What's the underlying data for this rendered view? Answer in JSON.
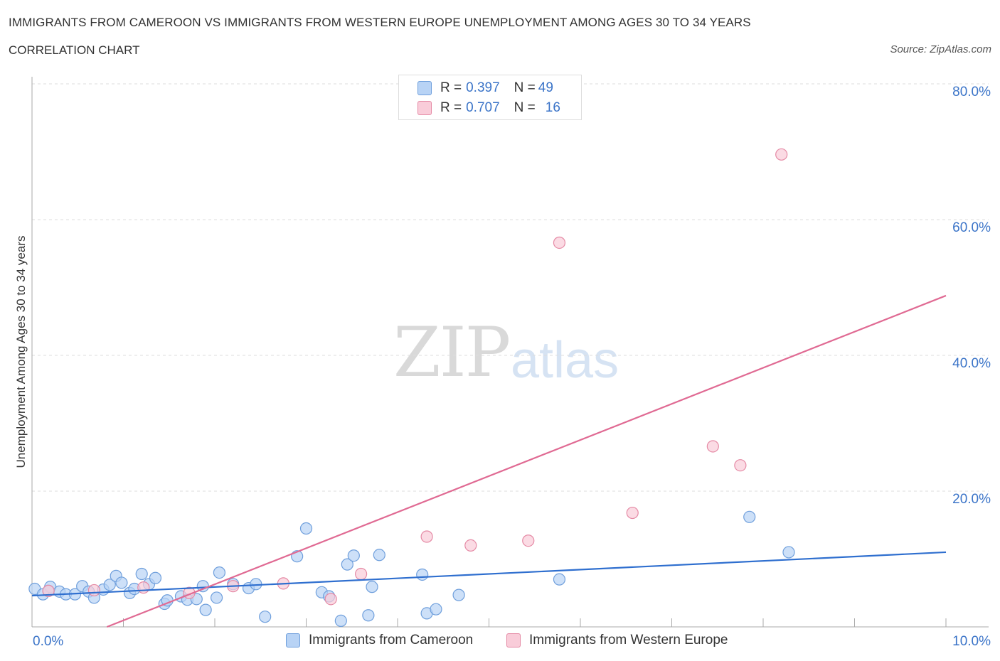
{
  "header": {
    "title": "IMMIGRANTS FROM CAMEROON VS IMMIGRANTS FROM WESTERN EUROPE UNEMPLOYMENT AMONG AGES 30 TO 34 YEARS",
    "subtitle": "CORRELATION CHART",
    "source": "Source: ZipAtlas.com"
  },
  "watermark": {
    "zip": "ZIP",
    "atlas": "atlas"
  },
  "stats_legend": [
    {
      "r_label": "R =",
      "r_value": "0.397",
      "n_label": "N =",
      "n_value": "49",
      "color": "#9dc3f0"
    },
    {
      "r_label": "R =",
      "r_value": "0.707",
      "n_label": "N =",
      "n_value": "16",
      "color": "#f5b3c6"
    }
  ],
  "colors": {
    "blue_fill": "#b8d3f5",
    "blue_stroke": "#6f9fdc",
    "blue_line": "#2f6fcf",
    "pink_fill": "#f9ccd9",
    "pink_stroke": "#e58aa5",
    "pink_line": "#e06a93",
    "axis_text": "#3b74c8",
    "grid": "#dddddd"
  },
  "chart_data": {
    "type": "scatter",
    "title": "IMMIGRANTS FROM CAMEROON VS IMMIGRANTS FROM WESTERN EUROPE UNEMPLOYMENT AMONG AGES 30 TO 34 YEARS",
    "subtitle": "CORRELATION CHART",
    "xlabel": "",
    "ylabel": "Unemployment Among Ages 30 to 34 years",
    "xlim": [
      0,
      10
    ],
    "ylim": [
      0,
      80
    ],
    "x_tick_labels": [
      "0.0%",
      "10.0%"
    ],
    "y_ticks": [
      20,
      40,
      60,
      80
    ],
    "y_tick_labels": [
      "20.0%",
      "40.0%",
      "60.0%",
      "80.0%"
    ],
    "grid": true,
    "legend_position": "bottom",
    "series": [
      {
        "name": "Immigrants from Cameroon",
        "color": "#9dc3f0",
        "points": [
          [
            0.03,
            5.6
          ],
          [
            0.12,
            4.8
          ],
          [
            0.2,
            5.9
          ],
          [
            0.3,
            5.2
          ],
          [
            0.37,
            4.8
          ],
          [
            0.47,
            4.8
          ],
          [
            0.55,
            6.0
          ],
          [
            0.62,
            5.2
          ],
          [
            0.68,
            4.3
          ],
          [
            0.78,
            5.5
          ],
          [
            0.85,
            6.2
          ],
          [
            0.92,
            7.5
          ],
          [
            0.98,
            6.5
          ],
          [
            1.07,
            5.0
          ],
          [
            1.12,
            5.6
          ],
          [
            1.2,
            7.8
          ],
          [
            1.28,
            6.3
          ],
          [
            1.35,
            7.2
          ],
          [
            1.45,
            3.4
          ],
          [
            1.48,
            3.9
          ],
          [
            1.63,
            4.5
          ],
          [
            1.7,
            4.0
          ],
          [
            1.8,
            4.1
          ],
          [
            1.87,
            6.0
          ],
          [
            1.9,
            2.5
          ],
          [
            2.02,
            4.3
          ],
          [
            2.05,
            8.0
          ],
          [
            2.2,
            6.3
          ],
          [
            2.37,
            5.7
          ],
          [
            2.45,
            6.3
          ],
          [
            2.55,
            1.5
          ],
          [
            2.9,
            10.4
          ],
          [
            3.0,
            14.5
          ],
          [
            3.17,
            5.1
          ],
          [
            3.25,
            4.5
          ],
          [
            3.38,
            0.9
          ],
          [
            3.45,
            9.2
          ],
          [
            3.52,
            10.5
          ],
          [
            3.68,
            1.7
          ],
          [
            3.72,
            5.9
          ],
          [
            3.8,
            10.6
          ],
          [
            4.27,
            7.7
          ],
          [
            4.32,
            2.0
          ],
          [
            4.42,
            2.6
          ],
          [
            4.67,
            4.7
          ],
          [
            5.77,
            7.0
          ],
          [
            7.85,
            16.2
          ],
          [
            8.28,
            11.0
          ],
          [
            0.18,
            5.3
          ]
        ]
      },
      {
        "name": "Immigrants from Western Europe",
        "color": "#f5b3c6",
        "points": [
          [
            0.18,
            5.3
          ],
          [
            0.68,
            5.4
          ],
          [
            1.22,
            5.8
          ],
          [
            1.72,
            5.0
          ],
          [
            2.2,
            6.0
          ],
          [
            2.75,
            6.4
          ],
          [
            3.27,
            4.1
          ],
          [
            3.6,
            7.8
          ],
          [
            4.32,
            13.3
          ],
          [
            4.8,
            12.0
          ],
          [
            5.43,
            12.7
          ],
          [
            5.77,
            56.6
          ],
          [
            6.57,
            16.8
          ],
          [
            7.45,
            26.6
          ],
          [
            7.75,
            23.8
          ],
          [
            8.2,
            69.6
          ]
        ]
      }
    ],
    "trend_lines": [
      {
        "series": "Immigrants from Cameroon",
        "x": [
          0,
          10
        ],
        "y": [
          4.6,
          11.0
        ]
      },
      {
        "series": "Immigrants from Western Europe",
        "x": [
          0.82,
          10
        ],
        "y": [
          0,
          48.8
        ]
      }
    ]
  }
}
